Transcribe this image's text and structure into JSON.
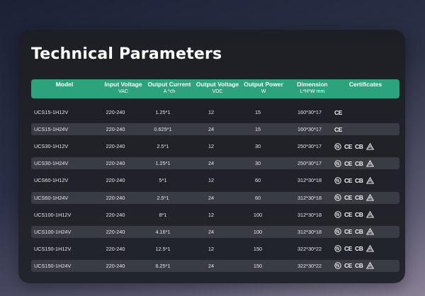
{
  "title": "Technical Parameters",
  "headers": [
    {
      "main": "Model",
      "sub": ""
    },
    {
      "main": "Input Voltage",
      "sub": "VAC"
    },
    {
      "main": "Output Current",
      "sub": "A *ch"
    },
    {
      "main": "Output Voltage",
      "sub": "VDC"
    },
    {
      "main": "Output Power",
      "sub": "W"
    },
    {
      "main": "Dimension",
      "sub": "L*H*W mm"
    },
    {
      "main": "Certificates",
      "sub": ""
    }
  ],
  "rows": [
    {
      "model": "UCS15-1H12V",
      "input": "220-240",
      "current": "1.25*1",
      "voltage": "12",
      "power": "15",
      "dimension": "160*30*17",
      "certificates": [
        "ce-mark"
      ]
    },
    {
      "model": "UCS15-1H24V",
      "input": "220-240",
      "current": "0.625*1",
      "voltage": "24",
      "power": "15",
      "dimension": "160*30*17",
      "certificates": [
        "ce-mark"
      ]
    },
    {
      "model": "UCS30-1H12V",
      "input": "220-240",
      "current": "2.5*1",
      "voltage": "12",
      "power": "30",
      "dimension": "250*30*17",
      "certificates": [
        "rcm-mark",
        "ce-mark",
        "cb-mark",
        "ukca-triangle-mark"
      ]
    },
    {
      "model": "UCS30-1H24V",
      "input": "220-240",
      "current": "1.25*1",
      "voltage": "24",
      "power": "30",
      "dimension": "250*30*17",
      "certificates": [
        "rcm-mark",
        "ce-mark",
        "cb-mark",
        "ukca-triangle-mark"
      ]
    },
    {
      "model": "UCS60-1H12V",
      "input": "220-240",
      "current": "5*1",
      "voltage": "12",
      "power": "60",
      "dimension": "312*30*18",
      "certificates": [
        "rcm-mark",
        "ce-mark",
        "cb-mark",
        "ukca-triangle-mark"
      ]
    },
    {
      "model": "UCS60-1H24V",
      "input": "220-240",
      "current": "2.5*1",
      "voltage": "24",
      "power": "60",
      "dimension": "312*30*18",
      "certificates": [
        "rcm-mark",
        "ce-mark",
        "cb-mark",
        "ukca-triangle-mark"
      ]
    },
    {
      "model": "UCS100-1H12V",
      "input": "220-240",
      "current": "8*1",
      "voltage": "12",
      "power": "100",
      "dimension": "312*30*18",
      "certificates": [
        "rcm-mark",
        "ce-mark",
        "cb-mark",
        "ukca-triangle-mark"
      ]
    },
    {
      "model": "UCS100-1H24V",
      "input": "220-240",
      "current": "4.16*1",
      "voltage": "24",
      "power": "100",
      "dimension": "312*30*18",
      "certificates": [
        "rcm-mark",
        "ce-mark",
        "cb-mark",
        "ukca-triangle-mark"
      ]
    },
    {
      "model": "UCS150-1H12V",
      "input": "220-240",
      "current": "12.5*1",
      "voltage": "12",
      "power": "150",
      "dimension": "322*30*22",
      "certificates": [
        "rcm-mark",
        "ce-mark",
        "cb-mark",
        "ukca-triangle-mark"
      ]
    },
    {
      "model": "UCS150-1H24V",
      "input": "220-240",
      "current": "6.25*1",
      "voltage": "24",
      "power": "150",
      "dimension": "322*30*22",
      "certificates": [
        "rcm-mark",
        "ce-mark",
        "cb-mark",
        "ukca-triangle-mark"
      ]
    }
  ],
  "colors": {
    "header_bg": "#2ca37a",
    "card_bg": "#1f2127",
    "alt_row_bg": "#3a3c43"
  }
}
